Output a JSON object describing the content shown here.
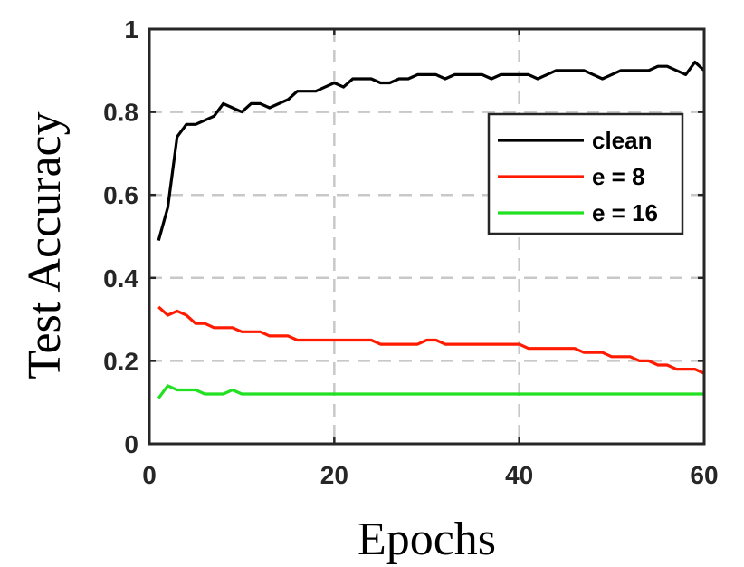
{
  "chart_data": {
    "type": "line",
    "xlabel": "Epochs",
    "ylabel": "Test Accuracy",
    "xlim": [
      0,
      60
    ],
    "ylim": [
      0,
      1
    ],
    "xticks": [
      0,
      20,
      40,
      60
    ],
    "xtick_labels": [
      "0",
      "20",
      "40",
      "60"
    ],
    "yticks": [
      0,
      0.2,
      0.4,
      0.6,
      0.8,
      1
    ],
    "ytick_labels": [
      "0",
      "0.2",
      "0.4",
      "0.6",
      "0.8",
      "1"
    ],
    "grid": true,
    "legend_position": "upper-right",
    "series": [
      {
        "name": "clean",
        "color": "#000000",
        "x": [
          1,
          2,
          3,
          4,
          5,
          6,
          7,
          8,
          9,
          10,
          11,
          12,
          13,
          14,
          15,
          16,
          17,
          18,
          19,
          20,
          21,
          22,
          23,
          24,
          25,
          26,
          27,
          28,
          29,
          30,
          31,
          32,
          33,
          34,
          35,
          36,
          37,
          38,
          39,
          40,
          41,
          42,
          43,
          44,
          45,
          46,
          47,
          48,
          49,
          50,
          51,
          52,
          53,
          54,
          55,
          56,
          57,
          58,
          59,
          60
        ],
        "y": [
          0.49,
          0.57,
          0.74,
          0.77,
          0.77,
          0.78,
          0.79,
          0.82,
          0.81,
          0.8,
          0.82,
          0.82,
          0.81,
          0.82,
          0.83,
          0.85,
          0.85,
          0.85,
          0.86,
          0.87,
          0.86,
          0.88,
          0.88,
          0.88,
          0.87,
          0.87,
          0.88,
          0.88,
          0.89,
          0.89,
          0.89,
          0.88,
          0.89,
          0.89,
          0.89,
          0.89,
          0.88,
          0.89,
          0.89,
          0.89,
          0.89,
          0.88,
          0.89,
          0.9,
          0.9,
          0.9,
          0.9,
          0.89,
          0.88,
          0.89,
          0.9,
          0.9,
          0.9,
          0.9,
          0.91,
          0.91,
          0.9,
          0.89,
          0.92,
          0.9
        ]
      },
      {
        "name": "e = 8",
        "color": "#ff1a00",
        "x": [
          1,
          2,
          3,
          4,
          5,
          6,
          7,
          8,
          9,
          10,
          11,
          12,
          13,
          14,
          15,
          16,
          17,
          18,
          19,
          20,
          21,
          22,
          23,
          24,
          25,
          26,
          27,
          28,
          29,
          30,
          31,
          32,
          33,
          34,
          35,
          36,
          37,
          38,
          39,
          40,
          41,
          42,
          43,
          44,
          45,
          46,
          47,
          48,
          49,
          50,
          51,
          52,
          53,
          54,
          55,
          56,
          57,
          58,
          59,
          60
        ],
        "y": [
          0.33,
          0.31,
          0.32,
          0.31,
          0.29,
          0.29,
          0.28,
          0.28,
          0.28,
          0.27,
          0.27,
          0.27,
          0.26,
          0.26,
          0.26,
          0.25,
          0.25,
          0.25,
          0.25,
          0.25,
          0.25,
          0.25,
          0.25,
          0.25,
          0.24,
          0.24,
          0.24,
          0.24,
          0.24,
          0.25,
          0.25,
          0.24,
          0.24,
          0.24,
          0.24,
          0.24,
          0.24,
          0.24,
          0.24,
          0.24,
          0.23,
          0.23,
          0.23,
          0.23,
          0.23,
          0.23,
          0.22,
          0.22,
          0.22,
          0.21,
          0.21,
          0.21,
          0.2,
          0.2,
          0.19,
          0.19,
          0.18,
          0.18,
          0.18,
          0.17
        ]
      },
      {
        "name": "e = 16",
        "color": "#22e022",
        "x": [
          1,
          2,
          3,
          4,
          5,
          6,
          7,
          8,
          9,
          10,
          11,
          12,
          13,
          14,
          15,
          16,
          17,
          18,
          19,
          20,
          21,
          22,
          23,
          24,
          25,
          26,
          27,
          28,
          29,
          30,
          31,
          32,
          33,
          34,
          35,
          36,
          37,
          38,
          39,
          40,
          41,
          42,
          43,
          44,
          45,
          46,
          47,
          48,
          49,
          50,
          51,
          52,
          53,
          54,
          55,
          56,
          57,
          58,
          59,
          60
        ],
        "y": [
          0.11,
          0.14,
          0.13,
          0.13,
          0.13,
          0.12,
          0.12,
          0.12,
          0.13,
          0.12,
          0.12,
          0.12,
          0.12,
          0.12,
          0.12,
          0.12,
          0.12,
          0.12,
          0.12,
          0.12,
          0.12,
          0.12,
          0.12,
          0.12,
          0.12,
          0.12,
          0.12,
          0.12,
          0.12,
          0.12,
          0.12,
          0.12,
          0.12,
          0.12,
          0.12,
          0.12,
          0.12,
          0.12,
          0.12,
          0.12,
          0.12,
          0.12,
          0.12,
          0.12,
          0.12,
          0.12,
          0.12,
          0.12,
          0.12,
          0.12,
          0.12,
          0.12,
          0.12,
          0.12,
          0.12,
          0.12,
          0.12,
          0.12,
          0.12,
          0.12
        ]
      }
    ]
  }
}
